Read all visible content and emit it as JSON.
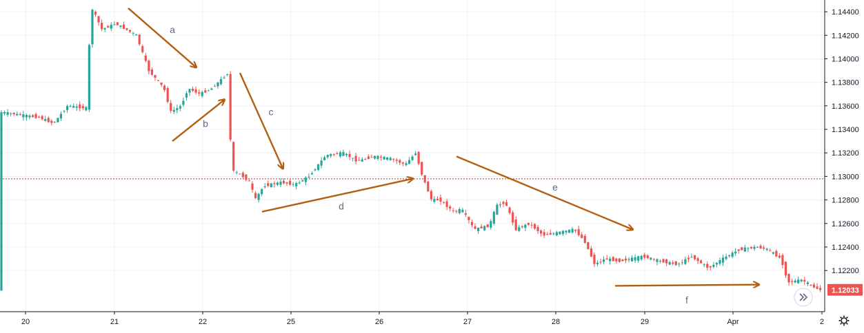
{
  "chart_data": {
    "type": "candlestick",
    "price_axis": {
      "ticks": [
        "1.14400",
        "1.14200",
        "1.14000",
        "1.13800",
        "1.13600",
        "1.13400",
        "1.13200",
        "1.13000",
        "1.12800",
        "1.12600",
        "1.12400",
        "1.12200"
      ],
      "range": [
        1.1185,
        1.145
      ]
    },
    "time_axis": {
      "ticks": [
        "20",
        "21",
        "22",
        "25",
        "26",
        "27",
        "28",
        "29",
        "Apr",
        "2"
      ]
    },
    "last_price": {
      "label": "1.12033",
      "value": 1.12033,
      "color": "#ef5350"
    },
    "horizontal_level": {
      "value": 1.1298,
      "color": "#c62828"
    },
    "colors": {
      "up": "#26a69a",
      "down": "#ef5350",
      "annotation": "#b35f0f",
      "grid": "#eef0f3"
    },
    "price_path": [
      [
        0,
        1.1355
      ],
      [
        60,
        1.135
      ],
      [
        80,
        1.1345
      ],
      [
        100,
        1.136
      ],
      [
        128,
        1.1358
      ],
      [
        134,
        1.1445
      ],
      [
        150,
        1.1425
      ],
      [
        170,
        1.143
      ],
      [
        200,
        1.142
      ],
      [
        218,
        1.139
      ],
      [
        240,
        1.1375
      ],
      [
        250,
        1.1355
      ],
      [
        265,
        1.136
      ],
      [
        275,
        1.1375
      ],
      [
        292,
        1.137
      ],
      [
        310,
        1.1375
      ],
      [
        333,
        1.1388
      ],
      [
        338,
        1.1305
      ],
      [
        350,
        1.1302
      ],
      [
        365,
        1.1295
      ],
      [
        372,
        1.128
      ],
      [
        385,
        1.1292
      ],
      [
        410,
        1.1295
      ],
      [
        430,
        1.1293
      ],
      [
        450,
        1.13
      ],
      [
        475,
        1.1318
      ],
      [
        500,
        1.132
      ],
      [
        520,
        1.1313
      ],
      [
        545,
        1.1317
      ],
      [
        570,
        1.1315
      ],
      [
        590,
        1.131
      ],
      [
        605,
        1.132
      ],
      [
        615,
        1.13
      ],
      [
        628,
        1.128
      ],
      [
        640,
        1.128
      ],
      [
        660,
        1.127
      ],
      [
        672,
        1.1272
      ],
      [
        690,
        1.1255
      ],
      [
        712,
        1.1258
      ],
      [
        722,
        1.1275
      ],
      [
        735,
        1.1278
      ],
      [
        750,
        1.1255
      ],
      [
        770,
        1.126
      ],
      [
        790,
        1.125
      ],
      [
        810,
        1.1252
      ],
      [
        835,
        1.1255
      ],
      [
        850,
        1.1245
      ],
      [
        865,
        1.1225
      ],
      [
        880,
        1.123
      ],
      [
        900,
        1.1228
      ],
      [
        935,
        1.1232
      ],
      [
        960,
        1.1228
      ],
      [
        985,
        1.1225
      ],
      [
        1005,
        1.1232
      ],
      [
        1030,
        1.1222
      ],
      [
        1050,
        1.123
      ],
      [
        1075,
        1.1238
      ],
      [
        1100,
        1.124
      ],
      [
        1115,
        1.1238
      ],
      [
        1135,
        1.123
      ],
      [
        1145,
        1.121
      ],
      [
        1165,
        1.1212
      ],
      [
        1185,
        1.1205
      ],
      [
        1195,
        1.1203
      ]
    ],
    "annotations": [
      {
        "label": "a",
        "x1": 186,
        "y1": 1.1443,
        "x2": 284,
        "y2": 1.1393,
        "lx": 250,
        "ly": 1.1422
      },
      {
        "label": "b",
        "x1": 250,
        "y1": 1.133,
        "x2": 325,
        "y2": 1.1365,
        "lx": 298,
        "ly": 1.1342
      },
      {
        "label": "c",
        "x1": 348,
        "y1": 1.1388,
        "x2": 410,
        "y2": 1.1307,
        "lx": 393,
        "ly": 1.1352
      },
      {
        "label": "d",
        "x1": 380,
        "y1": 1.127,
        "x2": 598,
        "y2": 1.1298,
        "lx": 495,
        "ly": 1.1272
      },
      {
        "label": "e",
        "x1": 662,
        "y1": 1.1317,
        "x2": 917,
        "y2": 1.1255,
        "lx": 805,
        "ly": 1.1288
      },
      {
        "label": "f",
        "x1": 892,
        "y1": 1.1207,
        "x2": 1100,
        "y2": 1.1208,
        "lx": 996,
        "ly": 1.1192
      }
    ]
  }
}
